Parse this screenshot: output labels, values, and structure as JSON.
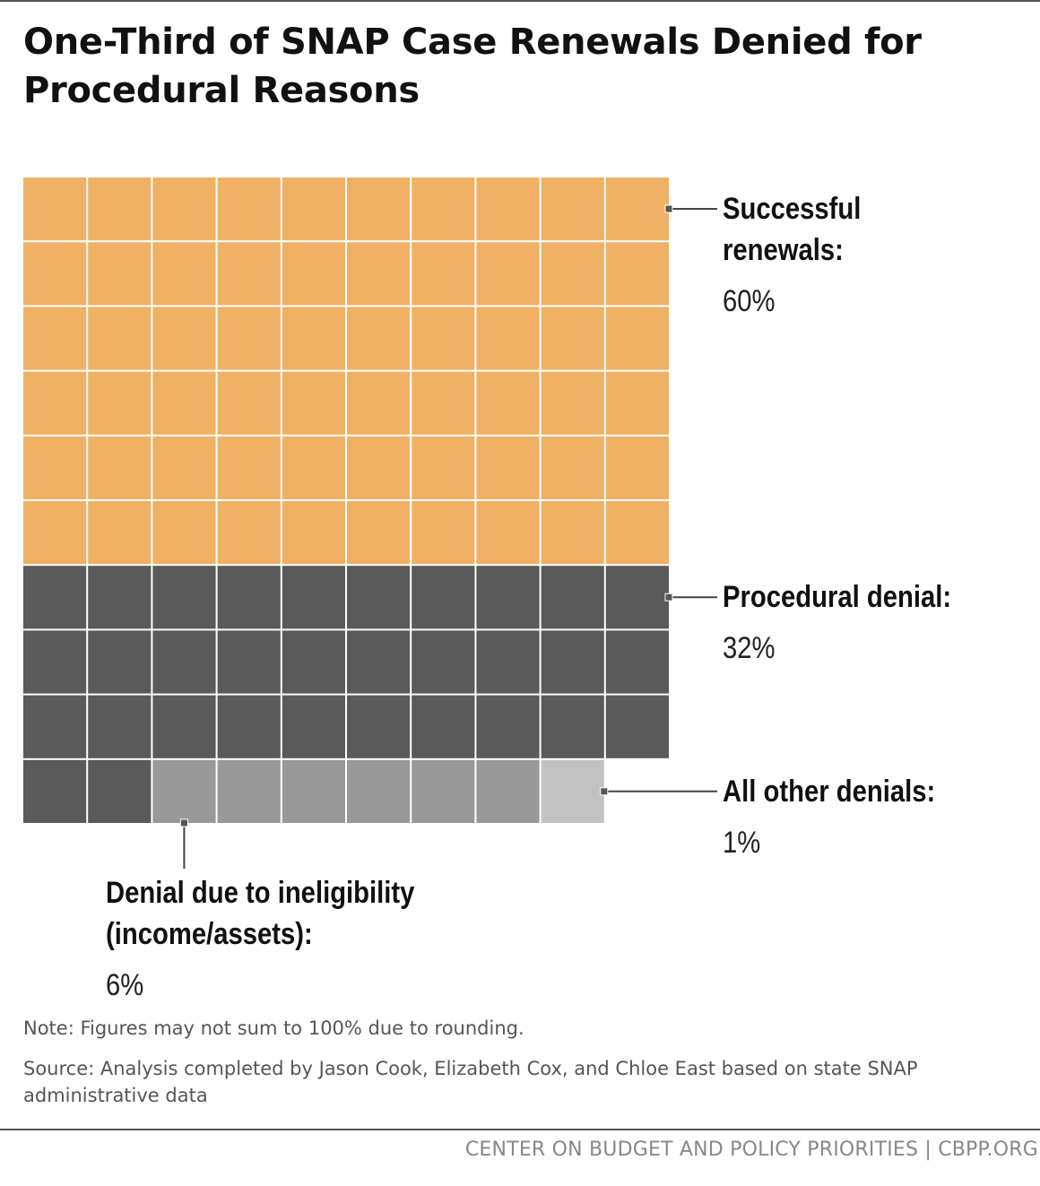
{
  "title": "One-Third of SNAP Case Renewals Denied for Procedural Reasons",
  "chart_data": {
    "type": "waffle",
    "grid": {
      "columns": 10,
      "rows": 10
    },
    "series": [
      {
        "name": "Successful renewals:",
        "value": 60,
        "value_label": "60%",
        "color": "#f0b165"
      },
      {
        "name": "Procedural denial:",
        "value": 32,
        "value_label": "32%",
        "color": "#5a5a5a"
      },
      {
        "name": "Denial due to ineligibility (income/assets):",
        "value": 6,
        "value_label": "6%",
        "color": "#999999"
      },
      {
        "name": "All other denials:",
        "value": 1,
        "value_label": "1%",
        "color": "#c2c2c2"
      }
    ]
  },
  "labels": {
    "successful": {
      "line1": "Successful",
      "line2": "renewals:",
      "value": "60%"
    },
    "procedural": {
      "line1": "Procedural denial:",
      "value": "32%"
    },
    "other": {
      "line1": "All other denials:",
      "value": "1%"
    },
    "ineligible": {
      "line1": "Denial due to ineligibility",
      "line2": "(income/assets):",
      "value": "6%"
    }
  },
  "note": "Note: Figures may not sum to 100% due to rounding.",
  "source": "Source: Analysis completed by Jason Cook, Elizabeth Cox, and Chloe East based on state SNAP administrative data",
  "footer": "CENTER ON BUDGET AND POLICY PRIORITIES | CBPP.ORG"
}
